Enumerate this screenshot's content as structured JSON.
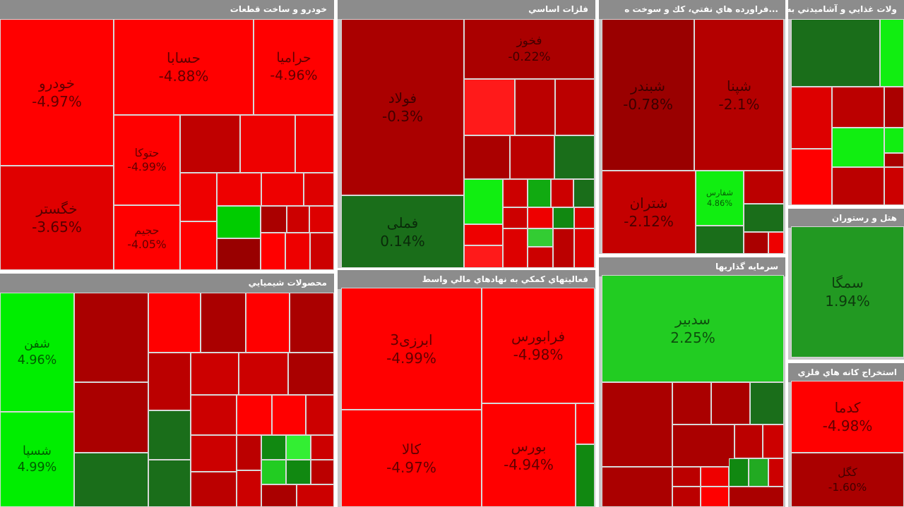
{
  "panels": [
    {
      "title": "خودرو و ساخت قطعات",
      "tiles": [
        {
          "name": "خودرو",
          "change": "-4.97%"
        },
        {
          "name": "حسابا",
          "change": "-4.88%"
        },
        {
          "name": "خگستر",
          "change": "-3.65%"
        },
        {
          "name": "حتوکا",
          "change": "-4.99%"
        },
        {
          "name": "حجیم",
          "change": "-4.05%"
        },
        {
          "name": "حرامیا",
          "change": "-4.96%"
        }
      ]
    },
    {
      "title": "فلزات اساسي",
      "tiles": [
        {
          "name": "فولاد",
          "change": "-0.3%"
        },
        {
          "name": "فملی",
          "change": "0.14%"
        },
        {
          "name": "فخوز",
          "change": "-0.22%"
        }
      ]
    },
    {
      "title": "...فراورده هاي نفتي، كك و سوخت ه",
      "tiles": [
        {
          "name": "شبندر",
          "change": "-0.78%"
        },
        {
          "name": "شپنا",
          "change": "-2.1%"
        },
        {
          "name": "شتران",
          "change": "-2.12%"
        },
        {
          "name": "شفارس",
          "change": "4.86%"
        }
      ]
    },
    {
      "title": "ولات غذايي و آشاميدني به ج",
      "tiles": []
    },
    {
      "title": "محصولات شيميايي",
      "tiles": [
        {
          "name": "شفن",
          "change": "4.96%"
        },
        {
          "name": "شسپا",
          "change": "4.99%"
        }
      ]
    },
    {
      "title": "فعاليتهاي كمكي به نهادهاي مالي واسط",
      "tiles": [
        {
          "name": "ابرزی3",
          "change": "-4.99%"
        },
        {
          "name": "کالا",
          "change": "-4.97%"
        },
        {
          "name": "فرابورس",
          "change": "-4.98%"
        },
        {
          "name": "بورس",
          "change": "-4.94%"
        }
      ]
    },
    {
      "title": "سرمايه گذاريها",
      "tiles": [
        {
          "name": "سدبیر",
          "change": "2.25%"
        }
      ]
    },
    {
      "title": "هتل و رستوران",
      "tiles": [
        {
          "name": "سمگا",
          "change": "1.94%"
        }
      ]
    },
    {
      "title": "استخراج كانه هاي فلزي",
      "tiles": [
        {
          "name": "کدما",
          "change": "-4.98%"
        },
        {
          "name": "کگل",
          "change": "-1.60%"
        }
      ]
    }
  ]
}
